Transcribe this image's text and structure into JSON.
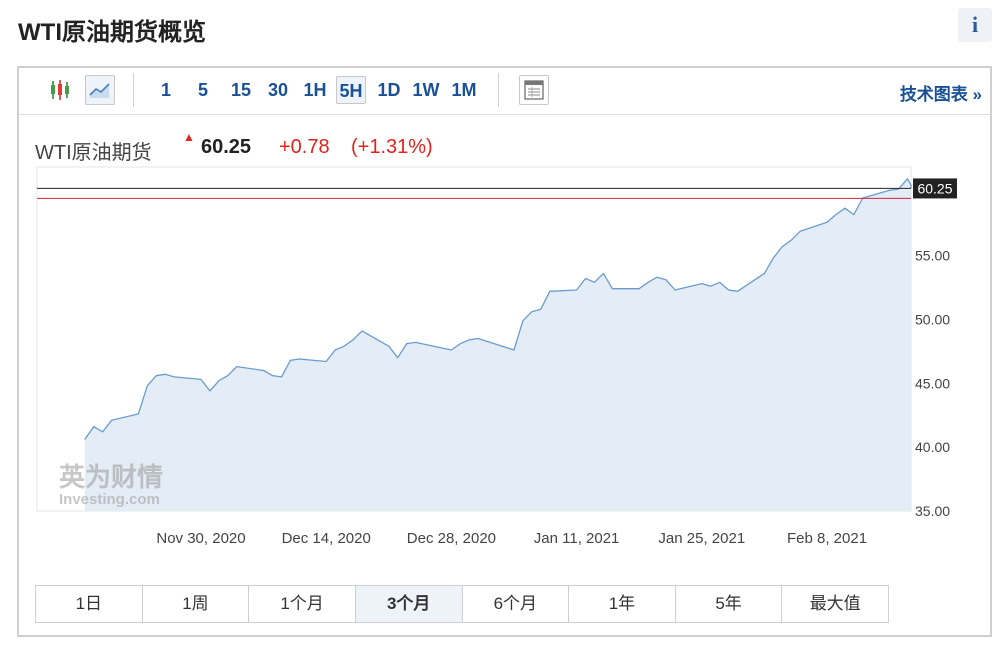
{
  "page": {
    "title": "WTI原油期货概览",
    "info_label": "i"
  },
  "toolbar": {
    "timeframes": [
      "1",
      "5",
      "15",
      "30",
      "1H",
      "5H",
      "1D",
      "1W",
      "1M"
    ],
    "selected_timeframe": "5H",
    "tech_chart_link": "技术图表 »",
    "icons": [
      "candlestick-icon",
      "line-chart-icon",
      "table-view-icon"
    ]
  },
  "quote": {
    "name": "WTI原油期货",
    "price": "60.25",
    "change": "+0.78",
    "change_pct": "(+1.31%)"
  },
  "range_buttons": [
    "1日",
    "1周",
    "1个月",
    "3个月",
    "6个月",
    "1年",
    "5年",
    "最大值"
  ],
  "active_range": "3个月",
  "watermark": {
    "cn": "英为财情",
    "en": "Investing.com"
  },
  "colors": {
    "line": "#6a9bd0",
    "area": "#e4edf6",
    "price_line": "#222222",
    "prev_close": "#d0263a",
    "up": "#e0241d",
    "link": "#1a5196"
  },
  "chart_data": {
    "type": "area",
    "title": "WTI原油期货",
    "ylim": [
      35,
      60.25
    ],
    "y_ticks": [
      "55.00",
      "50.00",
      "45.00",
      "40.00",
      "35.00"
    ],
    "y_tick_values": [
      55,
      50,
      45,
      40,
      35
    ],
    "x_tick_labels": [
      "Nov 30, 2020",
      "Dec 14, 2020",
      "Dec 28, 2020",
      "Jan 11, 2021",
      "Jan 25, 2021",
      "Feb 8, 2021"
    ],
    "x_tick_dates": [
      "2020-11-30",
      "2020-12-14",
      "2020-12-28",
      "2021-01-11",
      "2021-01-25",
      "2021-02-08"
    ],
    "x_range": [
      "2020-11-17",
      "2021-02-19"
    ],
    "last_price": 60.25,
    "prev_close": 59.47,
    "series": [
      {
        "values": [
          [
            "2020-11-17",
            40.6
          ],
          [
            "2020-11-18",
            41.6
          ],
          [
            "2020-11-19",
            41.2
          ],
          [
            "2020-11-20",
            42.1
          ],
          [
            "2020-11-23",
            42.6
          ],
          [
            "2020-11-24",
            44.8
          ],
          [
            "2020-11-25",
            45.6
          ],
          [
            "2020-11-26",
            45.7
          ],
          [
            "2020-11-27",
            45.5
          ],
          [
            "2020-11-30",
            45.3
          ],
          [
            "2020-12-01",
            44.4
          ],
          [
            "2020-12-02",
            45.2
          ],
          [
            "2020-12-03",
            45.6
          ],
          [
            "2020-12-04",
            46.3
          ],
          [
            "2020-12-07",
            46.0
          ],
          [
            "2020-12-08",
            45.6
          ],
          [
            "2020-12-09",
            45.5
          ],
          [
            "2020-12-10",
            46.8
          ],
          [
            "2020-12-11",
            46.9
          ],
          [
            "2020-12-14",
            46.7
          ],
          [
            "2020-12-15",
            47.6
          ],
          [
            "2020-12-16",
            47.9
          ],
          [
            "2020-12-17",
            48.4
          ],
          [
            "2020-12-18",
            49.1
          ],
          [
            "2020-12-21",
            47.9
          ],
          [
            "2020-12-22",
            47.0
          ],
          [
            "2020-12-23",
            48.1
          ],
          [
            "2020-12-24",
            48.2
          ],
          [
            "2020-12-28",
            47.6
          ],
          [
            "2020-12-29",
            48.1
          ],
          [
            "2020-12-30",
            48.4
          ],
          [
            "2020-12-31",
            48.5
          ],
          [
            "2021-01-04",
            47.6
          ],
          [
            "2021-01-05",
            49.9
          ],
          [
            "2021-01-06",
            50.6
          ],
          [
            "2021-01-07",
            50.8
          ],
          [
            "2021-01-08",
            52.2
          ],
          [
            "2021-01-11",
            52.3
          ],
          [
            "2021-01-12",
            53.2
          ],
          [
            "2021-01-13",
            52.9
          ],
          [
            "2021-01-14",
            53.6
          ],
          [
            "2021-01-15",
            52.4
          ],
          [
            "2021-01-18",
            52.4
          ],
          [
            "2021-01-19",
            52.9
          ],
          [
            "2021-01-20",
            53.3
          ],
          [
            "2021-01-21",
            53.1
          ],
          [
            "2021-01-22",
            52.3
          ],
          [
            "2021-01-25",
            52.8
          ],
          [
            "2021-01-26",
            52.6
          ],
          [
            "2021-01-27",
            52.9
          ],
          [
            "2021-01-28",
            52.3
          ],
          [
            "2021-01-29",
            52.2
          ],
          [
            "2021-02-01",
            53.6
          ],
          [
            "2021-02-02",
            54.8
          ],
          [
            "2021-02-03",
            55.7
          ],
          [
            "2021-02-04",
            56.2
          ],
          [
            "2021-02-05",
            56.9
          ],
          [
            "2021-02-08",
            57.6
          ],
          [
            "2021-02-09",
            58.2
          ],
          [
            "2021-02-10",
            58.7
          ],
          [
            "2021-02-11",
            58.2
          ],
          [
            "2021-02-12",
            59.5
          ],
          [
            "2021-02-15",
            60.1
          ],
          [
            "2021-02-16",
            60.2
          ],
          [
            "2021-02-17",
            61.0
          ],
          [
            "2021-02-18",
            60.5
          ],
          [
            "2021-02-19",
            60.25
          ]
        ]
      }
    ]
  }
}
